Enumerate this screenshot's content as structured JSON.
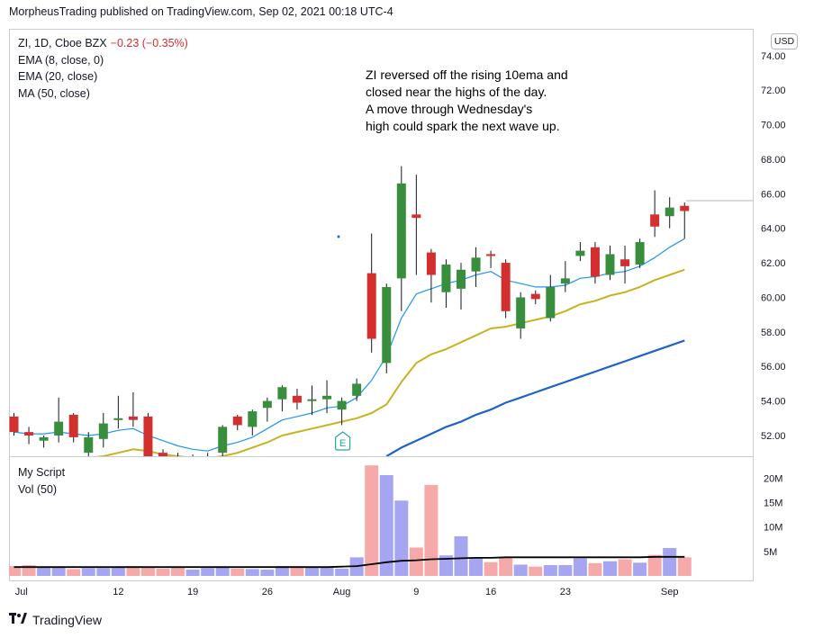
{
  "header": {
    "published": "MorpheusTrading published on TradingView.com, Sep 02, 2021 00:18 UTC-4"
  },
  "legend": {
    "symbol": "ZI, 1D, Cboe BZX",
    "change": "−0.23 (−0.35%)",
    "ema8": "EMA (8, close, 0)",
    "ema20": "EMA (20, close)",
    "ma50": "MA (50, close)"
  },
  "annotation": {
    "lines": [
      "ZI reversed off the rising 10ema and",
      "closed near the highs of the day.",
      "A move through Wednesday's",
      "high could spark the next wave up."
    ],
    "earnings_marker": "E"
  },
  "currency": "USD",
  "volume_legend": {
    "script": "My Script",
    "vol": "Vol (50)"
  },
  "footer": {
    "brand": "TradingView"
  },
  "colors": {
    "up": "#388e3c",
    "down": "#d32f2f",
    "ema8": "#2196f3",
    "ema20": "#c8b220",
    "ma50": "#1e63c8",
    "vol_up": "#9b9bf0",
    "vol_down": "#f5a0a0",
    "vol_ma": "#000000"
  },
  "chart_data": [
    {
      "type": "candlestick",
      "y_ticks": [
        "74.00",
        "72.00",
        "70.00",
        "68.00",
        "66.00",
        "64.00",
        "62.00",
        "60.00",
        "58.00",
        "56.00",
        "54.00",
        "52.00"
      ],
      "x_ticks": [
        "Jul",
        "12",
        "19",
        "26",
        "Aug",
        "9",
        "16",
        "23",
        "Sep"
      ],
      "ylim": [
        50.8,
        75.5
      ],
      "candles": [
        {
          "o": 53.1,
          "h": 53.3,
          "l": 52.0,
          "c": 52.2
        },
        {
          "o": 52.2,
          "h": 52.5,
          "l": 51.5,
          "c": 52.0
        },
        {
          "o": 51.7,
          "h": 52.0,
          "l": 51.3,
          "c": 51.9
        },
        {
          "o": 52.0,
          "h": 54.2,
          "l": 51.6,
          "c": 52.8
        },
        {
          "o": 53.2,
          "h": 53.3,
          "l": 51.6,
          "c": 51.9
        },
        {
          "o": 51.0,
          "h": 52.2,
          "l": 50.3,
          "c": 51.9
        },
        {
          "o": 51.8,
          "h": 53.3,
          "l": 51.3,
          "c": 52.7
        },
        {
          "o": 52.9,
          "h": 54.3,
          "l": 52.4,
          "c": 53.0
        },
        {
          "o": 53.1,
          "h": 54.5,
          "l": 52.5,
          "c": 52.9
        },
        {
          "o": 53.1,
          "h": 53.3,
          "l": 50.6,
          "c": 50.8
        },
        {
          "o": 51.0,
          "h": 51.2,
          "l": 50.5,
          "c": 50.7
        },
        {
          "o": 50.8,
          "h": 51.0,
          "l": 50.4,
          "c": 50.6
        },
        {
          "o": 50.6,
          "h": 50.9,
          "l": 50.4,
          "c": 50.7
        },
        {
          "o": 50.7,
          "h": 51.0,
          "l": 50.4,
          "c": 50.8
        },
        {
          "o": 51.0,
          "h": 52.6,
          "l": 50.7,
          "c": 52.5
        },
        {
          "o": 53.1,
          "h": 53.2,
          "l": 52.3,
          "c": 52.6
        },
        {
          "o": 52.5,
          "h": 53.5,
          "l": 52.0,
          "c": 53.4
        },
        {
          "o": 53.6,
          "h": 54.2,
          "l": 52.8,
          "c": 54.0
        },
        {
          "o": 54.1,
          "h": 54.9,
          "l": 53.4,
          "c": 54.8
        },
        {
          "o": 54.3,
          "h": 54.7,
          "l": 53.5,
          "c": 53.9
        },
        {
          "o": 54.0,
          "h": 54.9,
          "l": 53.2,
          "c": 54.1
        },
        {
          "o": 54.1,
          "h": 55.2,
          "l": 53.3,
          "c": 54.3
        },
        {
          "o": 53.5,
          "h": 54.2,
          "l": 52.6,
          "c": 54.0
        },
        {
          "o": 54.3,
          "h": 55.3,
          "l": 54.0,
          "c": 55.0
        },
        {
          "o": 61.4,
          "h": 63.7,
          "l": 56.8,
          "c": 57.6
        },
        {
          "o": 56.2,
          "h": 60.8,
          "l": 55.6,
          "c": 60.6
        },
        {
          "o": 61.1,
          "h": 67.6,
          "l": 59.2,
          "c": 66.6
        },
        {
          "o": 64.8,
          "h": 67.1,
          "l": 61.3,
          "c": 64.6
        },
        {
          "o": 62.6,
          "h": 62.8,
          "l": 59.7,
          "c": 61.3
        },
        {
          "o": 60.3,
          "h": 62.2,
          "l": 59.4,
          "c": 61.9
        },
        {
          "o": 60.5,
          "h": 62.0,
          "l": 59.3,
          "c": 61.6
        },
        {
          "o": 61.5,
          "h": 62.9,
          "l": 60.6,
          "c": 62.3
        },
        {
          "o": 62.5,
          "h": 62.7,
          "l": 61.7,
          "c": 62.4
        },
        {
          "o": 62.0,
          "h": 62.2,
          "l": 58.8,
          "c": 59.2
        },
        {
          "o": 58.2,
          "h": 60.3,
          "l": 57.6,
          "c": 60.0
        },
        {
          "o": 60.2,
          "h": 60.4,
          "l": 59.6,
          "c": 59.9
        },
        {
          "o": 58.8,
          "h": 61.3,
          "l": 58.6,
          "c": 60.6
        },
        {
          "o": 60.8,
          "h": 62.1,
          "l": 60.3,
          "c": 61.1
        },
        {
          "o": 62.4,
          "h": 63.2,
          "l": 62.1,
          "c": 62.7
        },
        {
          "o": 62.9,
          "h": 63.2,
          "l": 60.8,
          "c": 61.2
        },
        {
          "o": 61.3,
          "h": 63.0,
          "l": 61.0,
          "c": 62.5
        },
        {
          "o": 62.2,
          "h": 63.0,
          "l": 60.8,
          "c": 61.8
        },
        {
          "o": 61.9,
          "h": 63.4,
          "l": 61.7,
          "c": 63.2
        },
        {
          "o": 64.8,
          "h": 66.2,
          "l": 63.5,
          "c": 64.1
        },
        {
          "o": 64.7,
          "h": 65.8,
          "l": 64.0,
          "c": 65.2
        },
        {
          "o": 65.3,
          "h": 65.5,
          "l": 63.4,
          "c": 65.0
        }
      ],
      "last_price_line": 65.6,
      "ema8": [
        52.2,
        52.1,
        52.1,
        52.2,
        52.1,
        52.0,
        52.1,
        52.3,
        52.4,
        52.0,
        51.7,
        51.4,
        51.2,
        51.1,
        51.4,
        51.6,
        51.9,
        52.4,
        52.9,
        53.1,
        53.3,
        53.6,
        53.7,
        54.2,
        55.2,
        56.6,
        58.8,
        60.2,
        60.5,
        60.8,
        61.0,
        61.3,
        61.5,
        61.0,
        60.8,
        60.6,
        60.6,
        60.7,
        61.1,
        61.2,
        61.4,
        61.5,
        61.8,
        62.3,
        62.9,
        63.4
      ],
      "ema20": [
        null,
        null,
        null,
        null,
        50.6,
        50.7,
        50.8,
        51.0,
        51.2,
        51.1,
        50.9,
        50.8,
        50.7,
        50.7,
        50.8,
        51.0,
        51.3,
        51.6,
        52.0,
        52.2,
        52.4,
        52.6,
        52.8,
        53.0,
        53.3,
        53.8,
        55.1,
        56.2,
        56.7,
        57.0,
        57.4,
        57.8,
        58.2,
        58.3,
        58.5,
        58.7,
        58.9,
        59.2,
        59.6,
        59.8,
        60.1,
        60.3,
        60.6,
        61.0,
        61.3,
        61.6
      ],
      "ma50": [
        null,
        null,
        null,
        null,
        null,
        null,
        null,
        null,
        null,
        null,
        null,
        null,
        null,
        null,
        null,
        null,
        null,
        null,
        null,
        null,
        null,
        null,
        null,
        null,
        null,
        50.8,
        51.3,
        51.7,
        52.1,
        52.5,
        52.8,
        53.2,
        53.5,
        53.9,
        54.2,
        54.5,
        54.8,
        55.1,
        55.4,
        55.7,
        56.0,
        56.3,
        56.6,
        56.9,
        57.2,
        57.5
      ]
    },
    {
      "type": "bar",
      "title": "Vol (50)",
      "y_ticks": [
        "20M",
        "15M",
        "10M",
        "5M"
      ],
      "volume_millions": [
        2.0,
        2.2,
        1.7,
        1.9,
        1.4,
        1.6,
        1.6,
        1.8,
        2.0,
        1.7,
        1.5,
        1.8,
        1.3,
        1.6,
        1.9,
        1.5,
        1.4,
        1.3,
        2.0,
        2.0,
        1.8,
        1.7,
        1.5,
        3.8,
        22.6,
        20.6,
        15.4,
        5.8,
        18.6,
        4.2,
        8.1,
        3.6,
        2.8,
        3.8,
        2.3,
        1.9,
        2.2,
        2.2,
        3.6,
        2.6,
        3.0,
        3.4,
        2.7,
        4.3,
        5.7,
        3.8
      ],
      "up_day": [
        false,
        false,
        true,
        true,
        false,
        true,
        true,
        true,
        false,
        false,
        false,
        false,
        true,
        true,
        true,
        false,
        true,
        true,
        true,
        false,
        true,
        true,
        true,
        true,
        false,
        true,
        true,
        false,
        false,
        true,
        true,
        true,
        false,
        false,
        true,
        false,
        true,
        true,
        true,
        false,
        true,
        false,
        true,
        false,
        true,
        false
      ],
      "vol_ma": [
        1.8,
        1.8,
        1.8,
        1.8,
        1.8,
        1.8,
        1.8,
        1.8,
        1.8,
        1.8,
        1.8,
        1.8,
        1.8,
        1.8,
        1.8,
        1.8,
        1.8,
        1.8,
        1.8,
        1.8,
        1.8,
        1.8,
        1.9,
        2.0,
        2.4,
        2.8,
        3.1,
        3.2,
        3.4,
        3.5,
        3.6,
        3.7,
        3.7,
        3.8,
        3.8,
        3.8,
        3.8,
        3.8,
        3.8,
        3.8,
        3.8,
        3.8,
        3.8,
        3.9,
        3.9,
        3.9
      ],
      "ylim": [
        0,
        23
      ]
    }
  ]
}
